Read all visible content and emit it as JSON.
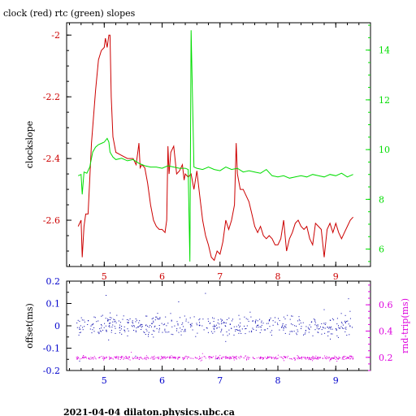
{
  "title": "clock (red) rtc (green) slopes",
  "footer": "2021-04-04  dilaton.physics.ubc.ca",
  "colors": {
    "clock": "#cc0000",
    "rtc": "#00dd00",
    "axis_bottom": "#0000cc",
    "offset": "#0000aa",
    "rtt": "#dd00dd",
    "frame": "#000000"
  },
  "chart_data": [
    {
      "type": "line",
      "title": "clock (red) rtc (green) slopes",
      "xlabel": "",
      "xlim": [
        4.35,
        9.6
      ],
      "xticks": [
        "5",
        "6",
        "7",
        "8",
        "9"
      ],
      "y_left": {
        "label": "clockslope",
        "lim": [
          -2.75,
          -1.96
        ],
        "ticks": [
          "-2",
          "-2.2",
          "-2.4",
          "-2.6"
        ],
        "color": "#cc0000"
      },
      "y_right": {
        "label": "",
        "lim": [
          5.3,
          15.1
        ],
        "ticks": [
          "6",
          "8",
          "10",
          "12",
          "14"
        ],
        "color": "#00dd00"
      },
      "series": [
        {
          "name": "clock",
          "axis": "left",
          "color": "#cc0000",
          "x": [
            4.55,
            4.6,
            4.62,
            4.65,
            4.68,
            4.72,
            4.78,
            4.85,
            4.9,
            4.95,
            5.0,
            5.02,
            5.05,
            5.08,
            5.1,
            5.12,
            5.15,
            5.2,
            5.3,
            5.4,
            5.5,
            5.55,
            5.58,
            5.6,
            5.62,
            5.65,
            5.7,
            5.75,
            5.8,
            5.85,
            5.9,
            5.95,
            6.0,
            6.05,
            6.08,
            6.1,
            6.12,
            6.15,
            6.2,
            6.25,
            6.3,
            6.35,
            6.38,
            6.4,
            6.45,
            6.5,
            6.55,
            6.6,
            6.65,
            6.7,
            6.75,
            6.8,
            6.85,
            6.9,
            6.95,
            7.0,
            7.05,
            7.1,
            7.15,
            7.2,
            7.25,
            7.28,
            7.3,
            7.35,
            7.4,
            7.5,
            7.55,
            7.6,
            7.65,
            7.7,
            7.75,
            7.8,
            7.85,
            7.9,
            7.95,
            8.0,
            8.05,
            8.1,
            8.15,
            8.2,
            8.25,
            8.3,
            8.35,
            8.4,
            8.45,
            8.5,
            8.55,
            8.6,
            8.65,
            8.7,
            8.75,
            8.8,
            8.85,
            8.9,
            8.95,
            9.0,
            9.05,
            9.1,
            9.15,
            9.2,
            9.25,
            9.3
          ],
          "y": [
            -2.62,
            -2.6,
            -2.72,
            -2.62,
            -2.58,
            -2.58,
            -2.35,
            -2.18,
            -2.08,
            -2.05,
            -2.04,
            -2.01,
            -2.04,
            -2.0,
            -2.0,
            -2.2,
            -2.33,
            -2.38,
            -2.39,
            -2.4,
            -2.4,
            -2.42,
            -2.38,
            -2.35,
            -2.43,
            -2.42,
            -2.43,
            -2.48,
            -2.55,
            -2.6,
            -2.62,
            -2.63,
            -2.63,
            -2.64,
            -2.6,
            -2.36,
            -2.45,
            -2.38,
            -2.36,
            -2.45,
            -2.44,
            -2.42,
            -2.47,
            -2.45,
            -2.46,
            -2.45,
            -2.5,
            -2.44,
            -2.52,
            -2.6,
            -2.65,
            -2.68,
            -2.72,
            -2.73,
            -2.7,
            -2.71,
            -2.67,
            -2.6,
            -2.63,
            -2.6,
            -2.55,
            -2.35,
            -2.45,
            -2.5,
            -2.5,
            -2.54,
            -2.58,
            -2.62,
            -2.64,
            -2.62,
            -2.65,
            -2.66,
            -2.65,
            -2.66,
            -2.68,
            -2.68,
            -2.66,
            -2.6,
            -2.7,
            -2.66,
            -2.64,
            -2.61,
            -2.6,
            -2.62,
            -2.63,
            -2.62,
            -2.66,
            -2.68,
            -2.61,
            -2.62,
            -2.63,
            -2.72,
            -2.63,
            -2.61,
            -2.64,
            -2.61,
            -2.64,
            -2.66,
            -2.64,
            -2.62,
            -2.6,
            -2.59
          ]
        },
        {
          "name": "rtc",
          "axis": "right",
          "color": "#00dd00",
          "x": [
            4.55,
            4.6,
            4.62,
            4.65,
            4.7,
            4.75,
            4.8,
            4.85,
            4.9,
            4.95,
            5.0,
            5.05,
            5.08,
            5.1,
            5.15,
            5.2,
            5.3,
            5.4,
            5.5,
            5.6,
            5.7,
            5.8,
            5.9,
            6.0,
            6.1,
            6.2,
            6.3,
            6.4,
            6.45,
            6.48,
            6.5,
            6.55,
            6.6,
            6.7,
            6.8,
            6.9,
            7.0,
            7.1,
            7.2,
            7.3,
            7.4,
            7.5,
            7.6,
            7.7,
            7.8,
            7.9,
            8.0,
            8.1,
            8.2,
            8.3,
            8.4,
            8.5,
            8.6,
            8.7,
            8.8,
            8.9,
            9.0,
            9.1,
            9.2,
            9.3
          ],
          "y": [
            8.95,
            9.0,
            8.2,
            9.1,
            9.05,
            9.3,
            9.9,
            10.1,
            10.2,
            10.25,
            10.3,
            10.45,
            10.3,
            9.9,
            9.7,
            9.6,
            9.65,
            9.55,
            9.6,
            9.45,
            9.35,
            9.3,
            9.3,
            9.25,
            9.35,
            9.3,
            9.25,
            9.25,
            9.2,
            5.5,
            14.8,
            9.3,
            9.25,
            9.2,
            9.3,
            9.2,
            9.15,
            9.3,
            9.2,
            9.25,
            9.1,
            9.15,
            9.1,
            9.05,
            9.2,
            8.95,
            8.9,
            8.95,
            8.85,
            8.9,
            8.95,
            8.9,
            9.0,
            8.95,
            8.9,
            9.0,
            8.95,
            9.05,
            8.9,
            9.0
          ]
        }
      ]
    },
    {
      "type": "scatter",
      "xlabel": "",
      "xlim": [
        4.35,
        9.6
      ],
      "xticks": [
        "5",
        "6",
        "7",
        "8",
        "9"
      ],
      "y_left": {
        "label": "offset(ms)",
        "lim": [
          -0.2,
          0.2
        ],
        "ticks": [
          "0.2",
          "0.1",
          "0",
          "-0.1",
          "-0.2"
        ],
        "color": "#0000cc"
      },
      "y_right": {
        "label": "rnd-trip(ms)",
        "lim": [
          0.1,
          0.78
        ],
        "ticks": [
          "0.2",
          "0.4",
          "0.6"
        ],
        "color": "#dd00dd"
      },
      "series": [
        {
          "name": "offset",
          "axis": "left",
          "color": "#0000aa",
          "center": 0.0,
          "spread": 0.04,
          "x_range": [
            4.5,
            9.3
          ]
        },
        {
          "name": "rnd-trip",
          "axis": "right",
          "color": "#dd00dd",
          "center": 0.2,
          "spread": 0.012,
          "x_range": [
            4.5,
            9.3
          ]
        }
      ]
    }
  ]
}
